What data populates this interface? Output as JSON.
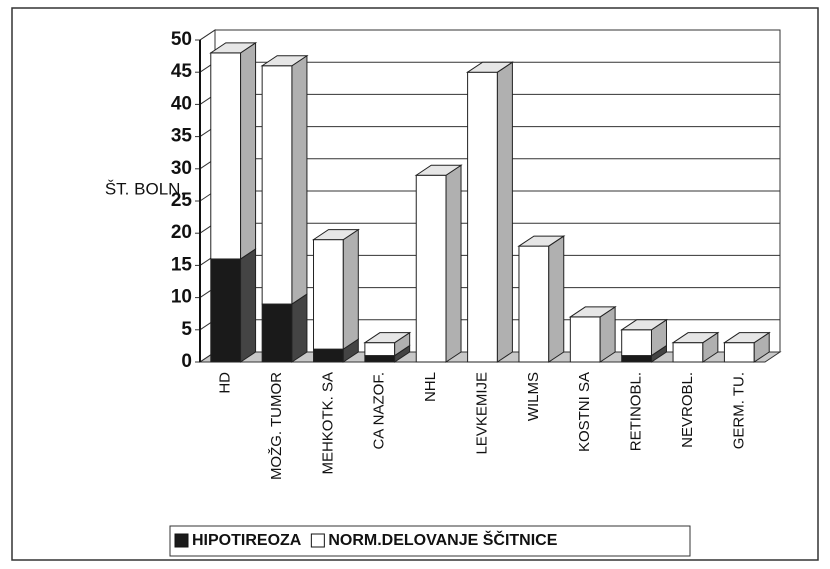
{
  "chart_data": {
    "type": "bar3d_stacked",
    "y_label": "ŠT. BOLN.",
    "categories": [
      "HD",
      "MOŽG. TUMOR",
      "MEHKOTK. SA",
      "CA NAZOF.",
      "NHL",
      "LEVKEMIJE",
      "WILMS",
      "KOSTNI SA",
      "RETINOBL.",
      "NEVROBL.",
      "GERM. TU."
    ],
    "series": [
      {
        "name": "HIPOTIREOZA",
        "color": "#1a1a1a",
        "values": [
          16,
          9,
          2,
          1,
          0,
          0,
          0,
          0,
          1,
          0,
          0
        ]
      },
      {
        "name": "NORM.DELOVANJE ŠČITNICE",
        "color": "#ffffff",
        "values": [
          32,
          37,
          17,
          2,
          29,
          45,
          18,
          7,
          4,
          3,
          3
        ]
      }
    ],
    "ylim": [
      0,
      50
    ],
    "yticks": [
      0,
      5,
      10,
      15,
      20,
      25,
      30,
      35,
      40,
      45,
      50
    ],
    "grid": true,
    "legend": "bottom"
  }
}
